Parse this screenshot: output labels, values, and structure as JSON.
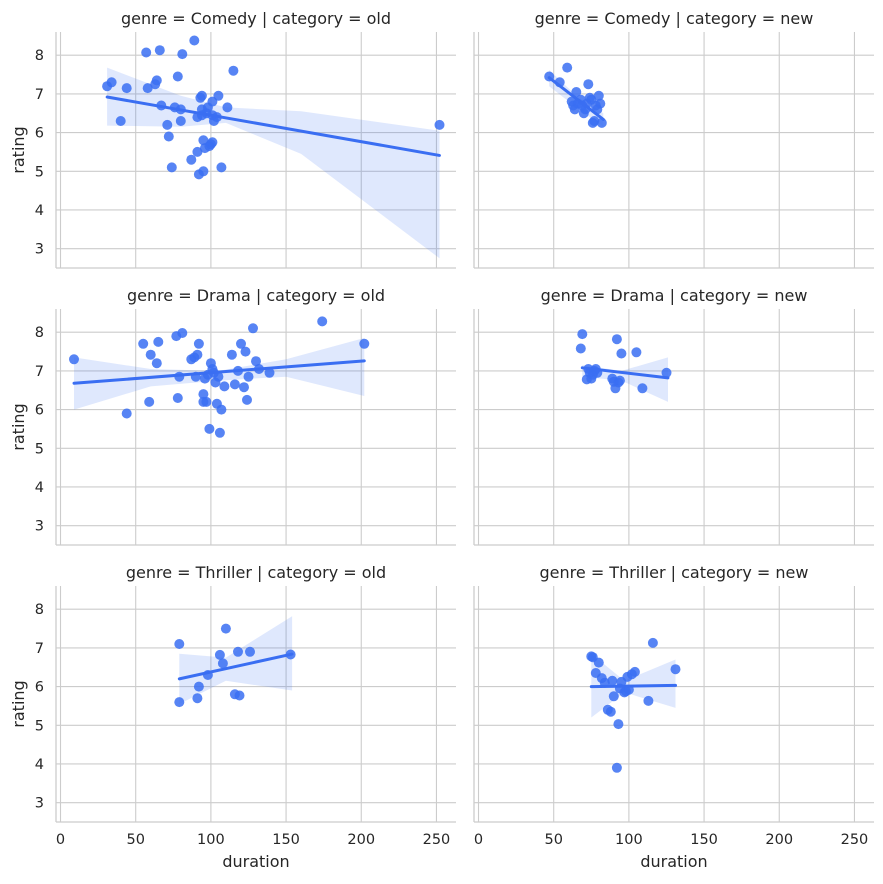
{
  "chart_data": {
    "type": "scatter",
    "xlabel": "duration",
    "ylabel": "rating",
    "xlim": [
      -3,
      263
    ],
    "ylim": [
      2.5,
      8.6
    ],
    "xticks": [
      0,
      50,
      100,
      150,
      200,
      250
    ],
    "yticks": [
      3,
      4,
      5,
      6,
      7,
      8
    ],
    "grid": true,
    "color": "#3a6ef2",
    "panels": [
      {
        "title": "genre = Comedy | category = old",
        "reg": {
          "x": [
            31,
            252
          ],
          "y": [
            6.92,
            5.41
          ]
        },
        "ci": {
          "x": [
            31,
            80,
            110,
            160,
            252
          ],
          "upper": [
            7.68,
            6.95,
            6.65,
            6.55,
            6.05
          ],
          "lower": [
            6.18,
            6.15,
            6.25,
            5.45,
            2.75
          ]
        },
        "points": [
          [
            31,
            7.2
          ],
          [
            34,
            7.3
          ],
          [
            40,
            6.3
          ],
          [
            44,
            7.15
          ],
          [
            57,
            8.07
          ],
          [
            58,
            7.15
          ],
          [
            63,
            7.25
          ],
          [
            64,
            7.35
          ],
          [
            66,
            8.13
          ],
          [
            67,
            6.7
          ],
          [
            71,
            6.2
          ],
          [
            72,
            5.9
          ],
          [
            74,
            5.1
          ],
          [
            76,
            6.65
          ],
          [
            78,
            7.45
          ],
          [
            80,
            6.3
          ],
          [
            80,
            6.6
          ],
          [
            81,
            8.03
          ],
          [
            87,
            5.3
          ],
          [
            89,
            8.38
          ],
          [
            91,
            6.4
          ],
          [
            91,
            5.5
          ],
          [
            92,
            4.92
          ],
          [
            93,
            6.9
          ],
          [
            94,
            6.95
          ],
          [
            94,
            6.6
          ],
          [
            94,
            6.45
          ],
          [
            95,
            5.8
          ],
          [
            95,
            5.0
          ],
          [
            96,
            5.6
          ],
          [
            97,
            6.5
          ],
          [
            98,
            6.65
          ],
          [
            99,
            5.65
          ],
          [
            100,
            5.7
          ],
          [
            101,
            6.8
          ],
          [
            101,
            6.45
          ],
          [
            101,
            5.75
          ],
          [
            102,
            6.3
          ],
          [
            104,
            6.4
          ],
          [
            105,
            6.95
          ],
          [
            107,
            5.1
          ],
          [
            111,
            6.65
          ],
          [
            115,
            7.6
          ],
          [
            252,
            6.2
          ]
        ]
      },
      {
        "title": "genre = Comedy | category = new",
        "reg": {
          "x": [
            47,
            83
          ],
          "y": [
            7.42,
            6.34
          ]
        },
        "ci": {
          "x": [
            47,
            65,
            83
          ],
          "upper": [
            7.62,
            6.95,
            6.5
          ],
          "lower": [
            7.2,
            6.65,
            6.15
          ]
        },
        "points": [
          [
            47,
            7.45
          ],
          [
            54,
            7.3
          ],
          [
            59,
            7.68
          ],
          [
            62,
            6.8
          ],
          [
            63,
            6.7
          ],
          [
            64,
            6.6
          ],
          [
            65,
            7.05
          ],
          [
            66,
            6.75
          ],
          [
            68,
            6.85
          ],
          [
            69,
            6.7
          ],
          [
            70,
            6.5
          ],
          [
            71,
            6.6
          ],
          [
            72,
            6.75
          ],
          [
            73,
            7.25
          ],
          [
            74,
            6.9
          ],
          [
            75,
            6.85
          ],
          [
            76,
            6.25
          ],
          [
            77,
            6.3
          ],
          [
            78,
            6.7
          ],
          [
            79,
            6.6
          ],
          [
            80,
            6.95
          ],
          [
            81,
            6.75
          ],
          [
            82,
            6.25
          ]
        ]
      },
      {
        "title": "genre = Drama | category = old",
        "reg": {
          "x": [
            9,
            202
          ],
          "y": [
            6.68,
            7.26
          ]
        },
        "ci": {
          "x": [
            9,
            60,
            105,
            150,
            202
          ],
          "upper": [
            7.35,
            7.05,
            7.0,
            7.3,
            7.85
          ],
          "lower": [
            6.0,
            6.6,
            6.75,
            6.85,
            6.35
          ]
        },
        "points": [
          [
            9,
            7.3
          ],
          [
            44,
            5.9
          ],
          [
            55,
            7.7
          ],
          [
            59,
            6.2
          ],
          [
            60,
            7.42
          ],
          [
            64,
            7.2
          ],
          [
            65,
            7.75
          ],
          [
            77,
            7.9
          ],
          [
            78,
            6.3
          ],
          [
            79,
            6.85
          ],
          [
            81,
            7.98
          ],
          [
            87,
            7.3
          ],
          [
            89,
            7.35
          ],
          [
            90,
            6.85
          ],
          [
            91,
            7.42
          ],
          [
            92,
            7.7
          ],
          [
            95,
            6.2
          ],
          [
            95,
            6.4
          ],
          [
            96,
            6.8
          ],
          [
            97,
            6.2
          ],
          [
            98,
            6.9
          ],
          [
            99,
            5.5
          ],
          [
            100,
            7.2
          ],
          [
            101,
            7.05
          ],
          [
            102,
            6.95
          ],
          [
            103,
            6.7
          ],
          [
            104,
            6.15
          ],
          [
            105,
            6.85
          ],
          [
            106,
            5.4
          ],
          [
            107,
            6.0
          ],
          [
            109,
            6.6
          ],
          [
            114,
            7.42
          ],
          [
            116,
            6.65
          ],
          [
            118,
            7.0
          ],
          [
            120,
            7.7
          ],
          [
            122,
            6.58
          ],
          [
            123,
            7.5
          ],
          [
            124,
            6.25
          ],
          [
            125,
            6.85
          ],
          [
            128,
            8.1
          ],
          [
            130,
            7.25
          ],
          [
            132,
            7.05
          ],
          [
            139,
            6.95
          ],
          [
            174,
            8.28
          ],
          [
            202,
            7.7
          ]
        ]
      },
      {
        "title": "genre = Drama | category = new",
        "reg": {
          "x": [
            69,
            126
          ],
          "y": [
            7.08,
            6.82
          ]
        },
        "ci": {
          "x": [
            69,
            95,
            126
          ],
          "upper": [
            7.15,
            7.0,
            7.35
          ],
          "lower": [
            6.85,
            6.75,
            6.2
          ]
        },
        "points": [
          [
            68,
            7.58
          ],
          [
            69,
            7.95
          ],
          [
            72,
            6.78
          ],
          [
            73,
            7.05
          ],
          [
            74,
            6.95
          ],
          [
            75,
            6.8
          ],
          [
            76,
            6.9
          ],
          [
            77,
            7.0
          ],
          [
            78,
            7.05
          ],
          [
            79,
            6.95
          ],
          [
            89,
            6.8
          ],
          [
            90,
            6.72
          ],
          [
            91,
            6.55
          ],
          [
            92,
            7.82
          ],
          [
            93,
            6.7
          ],
          [
            94,
            6.75
          ],
          [
            95,
            7.45
          ],
          [
            105,
            7.48
          ],
          [
            109,
            6.55
          ],
          [
            125,
            6.95
          ]
        ]
      },
      {
        "title": "genre = Thriller | category = old",
        "reg": {
          "x": [
            79,
            154
          ],
          "y": [
            6.2,
            6.84
          ]
        },
        "ci": {
          "x": [
            79,
            110,
            154
          ],
          "upper": [
            6.85,
            6.75,
            7.82
          ],
          "lower": [
            5.55,
            6.15,
            5.9
          ]
        },
        "points": [
          [
            79,
            7.1
          ],
          [
            79,
            5.6
          ],
          [
            91,
            5.7
          ],
          [
            92,
            6.0
          ],
          [
            98,
            6.3
          ],
          [
            106,
            6.82
          ],
          [
            108,
            6.6
          ],
          [
            110,
            7.5
          ],
          [
            116,
            5.8
          ],
          [
            118,
            6.9
          ],
          [
            119,
            5.77
          ],
          [
            126,
            6.9
          ],
          [
            153,
            6.83
          ]
        ]
      },
      {
        "title": "genre = Thriller | category = new",
        "reg": {
          "x": [
            75,
            131
          ],
          "y": [
            6.0,
            6.03
          ]
        },
        "ci": {
          "x": [
            75,
            97,
            131
          ],
          "upper": [
            6.85,
            6.15,
            6.7
          ],
          "lower": [
            5.2,
            5.85,
            5.45
          ]
        },
        "points": [
          [
            75,
            6.78
          ],
          [
            76,
            6.76
          ],
          [
            78,
            6.35
          ],
          [
            80,
            6.62
          ],
          [
            82,
            6.22
          ],
          [
            84,
            6.1
          ],
          [
            86,
            5.4
          ],
          [
            88,
            5.35
          ],
          [
            89,
            6.15
          ],
          [
            90,
            5.75
          ],
          [
            92,
            3.9
          ],
          [
            93,
            5.03
          ],
          [
            94,
            5.95
          ],
          [
            95,
            6.12
          ],
          [
            97,
            5.85
          ],
          [
            98,
            5.88
          ],
          [
            99,
            6.25
          ],
          [
            100,
            5.92
          ],
          [
            102,
            6.32
          ],
          [
            104,
            6.38
          ],
          [
            113,
            5.63
          ],
          [
            116,
            7.13
          ],
          [
            131,
            6.45
          ]
        ]
      }
    ]
  }
}
